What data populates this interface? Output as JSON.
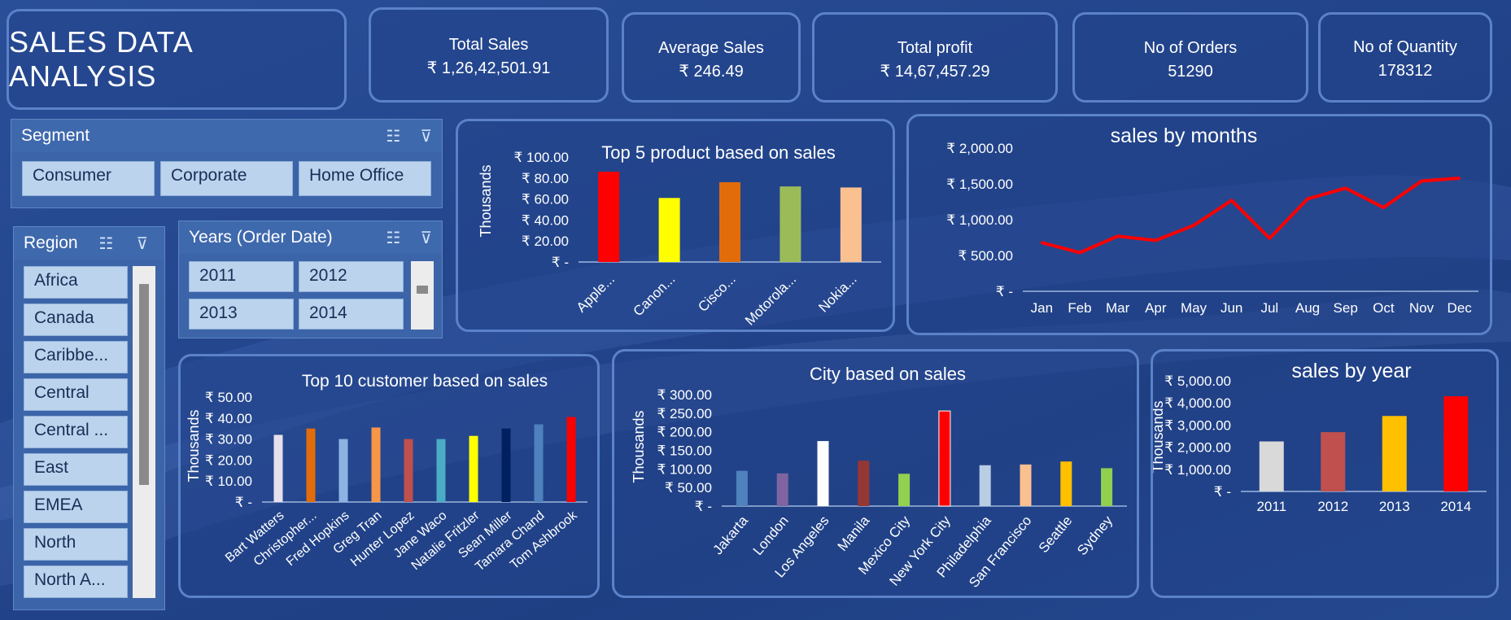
{
  "dashboard_title": "SALES DATA ANALYSIS",
  "kpis": [
    {
      "label": "Total Sales",
      "value": "₹ 1,26,42,501.91"
    },
    {
      "label": "Average Sales",
      "value": "₹ 246.49"
    },
    {
      "label": "Total profit",
      "value": "₹ 14,67,457.29"
    },
    {
      "label": "No of Orders",
      "value": "51290"
    },
    {
      "label": "No of Quantity",
      "value": "178312"
    }
  ],
  "slicers": {
    "segment": {
      "title": "Segment",
      "items": [
        "Consumer",
        "Corporate",
        "Home Office"
      ]
    },
    "region": {
      "title": "Region",
      "items": [
        "Africa",
        "Canada",
        "Caribbe...",
        "Central",
        "Central ...",
        "East",
        "EMEA",
        "North",
        "North A..."
      ]
    },
    "years": {
      "title": "Years (Order Date)",
      "items": [
        "2011",
        "2012",
        "2013",
        "2014"
      ]
    }
  },
  "chart_data": [
    {
      "id": "top5",
      "type": "bar",
      "title": "Top 5 product based on sales",
      "ylabel": "Thousands",
      "categories": [
        "Apple...",
        "Canon...",
        "Cisco...",
        "Motorola...",
        "Nokia..."
      ],
      "values": [
        86,
        61,
        76,
        72,
        71
      ],
      "colors": [
        "#ff0000",
        "#ffff00",
        "#e36c0a",
        "#9bbb59",
        "#fac090"
      ],
      "ylim": [
        0,
        100
      ],
      "yticks": [
        0,
        20,
        40,
        60,
        80,
        100
      ],
      "ytick_labels": [
        "₹ -",
        "₹ 20.00",
        "₹ 40.00",
        "₹ 60.00",
        "₹ 80.00",
        "₹ 100.00"
      ]
    },
    {
      "id": "months",
      "type": "line",
      "title": "sales by months",
      "categories": [
        "Jan",
        "Feb",
        "Mar",
        "Apr",
        "May",
        "Jun",
        "Jul",
        "Aug",
        "Sep",
        "Oct",
        "Nov",
        "Dec"
      ],
      "values": [
        680,
        540,
        770,
        710,
        920,
        1270,
        740,
        1290,
        1440,
        1170,
        1540,
        1580
      ],
      "color": "#ff0000",
      "ylim": [
        0,
        2000
      ],
      "yticks": [
        0,
        500,
        1000,
        1500,
        2000
      ],
      "ytick_labels": [
        "₹ -",
        "₹ 500.00",
        "₹ 1,000.00",
        "₹ 1,500.00",
        "₹ 2,000.00"
      ]
    },
    {
      "id": "customers",
      "type": "bar",
      "title": "Top 10 customer based on sales",
      "ylabel": "Thousands",
      "categories": [
        "Bart Watters",
        "Christopher...",
        "Fred Hopkins",
        "Greg Tran",
        "Hunter Lopez",
        "Jane Waco",
        "Natalie Fritzler",
        "Sean Miller",
        "Tamara Chand",
        "Tom Ashbrook"
      ],
      "values": [
        32,
        35,
        30,
        35.5,
        30,
        30,
        31.5,
        35,
        37,
        40.5
      ],
      "colors": [
        "#e6e0ec",
        "#e36c0a",
        "#8db3e2",
        "#f79646",
        "#c0504d",
        "#4bacc6",
        "#ffff00",
        "#002060",
        "#4f81bd",
        "#ff0000"
      ],
      "ylim": [
        0,
        50
      ],
      "yticks": [
        0,
        10,
        20,
        30,
        40,
        50
      ],
      "ytick_labels": [
        "₹ -",
        "₹ 10.00",
        "₹ 20.00",
        "₹ 30.00",
        "₹ 40.00",
        "₹ 50.00"
      ]
    },
    {
      "id": "cities",
      "type": "bar",
      "title": "City based on sales",
      "ylabel": "Thousands",
      "categories": [
        "Jakarta",
        "London",
        "Los Angeles",
        "Manila",
        "Mexico City",
        "New York City",
        "Philadelphia",
        "San Francisco",
        "Seattle",
        "Sydney"
      ],
      "values": [
        95,
        88,
        175,
        122,
        87,
        256,
        110,
        112,
        120,
        102
      ],
      "colors": [
        "#4f81bd",
        "#8064a2",
        "#ffffff",
        "#953735",
        "#92d050",
        "#ff0000",
        "#b9cde5",
        "#fac090",
        "#ffc000",
        "#92d050"
      ],
      "ylim": [
        0,
        300
      ],
      "yticks": [
        0,
        50,
        100,
        150,
        200,
        250,
        300
      ],
      "ytick_labels": [
        "₹ -",
        "₹ 50.00",
        "₹ 100.00",
        "₹ 150.00",
        "₹ 200.00",
        "₹ 250.00",
        "₹ 300.00"
      ]
    },
    {
      "id": "years",
      "type": "bar",
      "title": "sales by year",
      "ylabel": "Thousands",
      "categories": [
        "2011",
        "2012",
        "2013",
        "2014"
      ],
      "values": [
        2260,
        2680,
        3410,
        4300
      ],
      "colors": [
        "#d9d9d9",
        "#c0504d",
        "#ffc000",
        "#ff0000"
      ],
      "ylim": [
        0,
        5000
      ],
      "yticks": [
        0,
        1000,
        2000,
        3000,
        4000,
        5000
      ],
      "ytick_labels": [
        "₹ -",
        "₹ 1,000.00",
        "₹ 2,000.00",
        "₹ 3,000.00",
        "₹ 4,000.00",
        "₹ 5,000.00"
      ]
    }
  ]
}
